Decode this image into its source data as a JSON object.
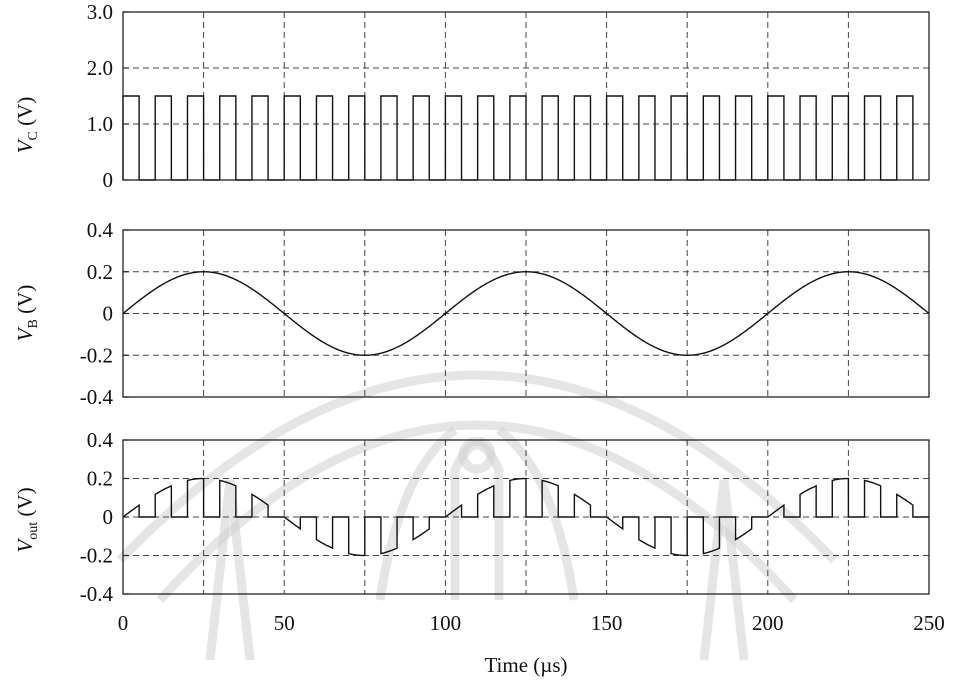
{
  "figure": {
    "xlabel_prefix": "Time (",
    "xlabel_unit": "µs",
    "xlabel_suffix": ")"
  },
  "chart_data": [
    {
      "type": "line",
      "panel": "top",
      "ylabel": {
        "var": "V",
        "sub": "C",
        "unit": " (V)"
      },
      "ylim": [
        0,
        3.0
      ],
      "yticks": [
        0,
        1.0,
        2.0,
        3.0
      ],
      "ytick_labels": [
        "0",
        "1.0",
        "2.0",
        "3.0"
      ],
      "xlim": [
        0,
        250
      ],
      "grid": true,
      "series": [
        {
          "kind": "pulse_train",
          "high": 1.5,
          "low": 0,
          "period_us": 10,
          "pulse_width_us": 5,
          "first_pulse_start_us": 0,
          "pulse_count": 25
        }
      ]
    },
    {
      "type": "line",
      "panel": "middle",
      "ylabel": {
        "var": "V",
        "sub": "B",
        "unit": " (V)"
      },
      "ylim": [
        -0.4,
        0.4
      ],
      "yticks": [
        -0.4,
        -0.2,
        0,
        0.2,
        0.4
      ],
      "ytick_labels": [
        "-0.4",
        "-0.2",
        "0",
        "0.2",
        "0.4"
      ],
      "xlim": [
        0,
        250
      ],
      "grid": true,
      "series": [
        {
          "kind": "sine",
          "amplitude": 0.2,
          "period_us": 100,
          "phase_deg": 0
        }
      ]
    },
    {
      "type": "line",
      "panel": "bottom",
      "ylabel": {
        "var": "V",
        "sub": "out",
        "unit": " (V)"
      },
      "ylim": [
        -0.4,
        0.4
      ],
      "yticks": [
        -0.4,
        -0.2,
        0,
        0.2,
        0.4
      ],
      "ytick_labels": [
        "-0.4",
        "-0.2",
        "0",
        "0.2",
        "0.4"
      ],
      "xlim": [
        0,
        250
      ],
      "xticks": [
        0,
        50,
        100,
        150,
        200,
        250
      ],
      "xtick_labels": [
        "0",
        "50",
        "100",
        "150",
        "200",
        "250"
      ],
      "grid": true,
      "series": [
        {
          "kind": "sampled_sine",
          "amplitude": 0.2,
          "period_us": 100,
          "sample_period_us": 10,
          "sample_width_us": 5,
          "first_sample_start_us": 0,
          "sample_count": 25
        }
      ]
    }
  ]
}
